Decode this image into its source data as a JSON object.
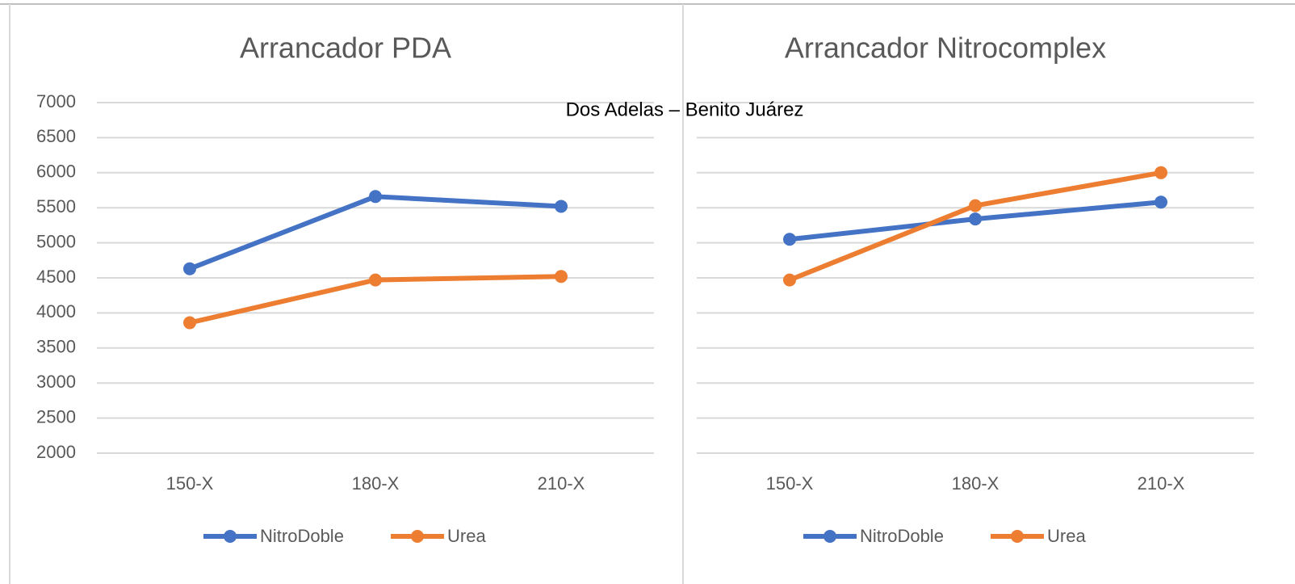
{
  "label": "Dos Adelas – Benito Juárez",
  "chart_data": [
    {
      "type": "line",
      "title": "Arrancador PDA",
      "categories": [
        "150-X",
        "180-X",
        "210-X"
      ],
      "series": [
        {
          "name": "NitroDoble",
          "color": "#4472c4",
          "values": [
            4630,
            5660,
            5520
          ]
        },
        {
          "name": "Urea",
          "color": "#ed7d31",
          "values": [
            3860,
            4470,
            4520
          ]
        }
      ],
      "ylim": [
        2000,
        7000
      ],
      "yticks": [
        2000,
        2500,
        3000,
        3500,
        4000,
        4500,
        5000,
        5500,
        6000,
        6500,
        7000
      ],
      "grid": true,
      "ytick_labels": true,
      "legend": "bottom"
    },
    {
      "type": "line",
      "title": "Arrancador Nitrocomplex",
      "categories": [
        "150-X",
        "180-X",
        "210-X"
      ],
      "series": [
        {
          "name": "NitroDoble",
          "color": "#4472c4",
          "values": [
            5050,
            5340,
            5580
          ]
        },
        {
          "name": "Urea",
          "color": "#ed7d31",
          "values": [
            4470,
            5530,
            6000
          ]
        }
      ],
      "ylim": [
        2000,
        7000
      ],
      "yticks": [
        2000,
        2500,
        3000,
        3500,
        4000,
        4500,
        5000,
        5500,
        6000,
        6500,
        7000
      ],
      "grid": true,
      "ytick_labels": false,
      "legend": "bottom"
    }
  ]
}
